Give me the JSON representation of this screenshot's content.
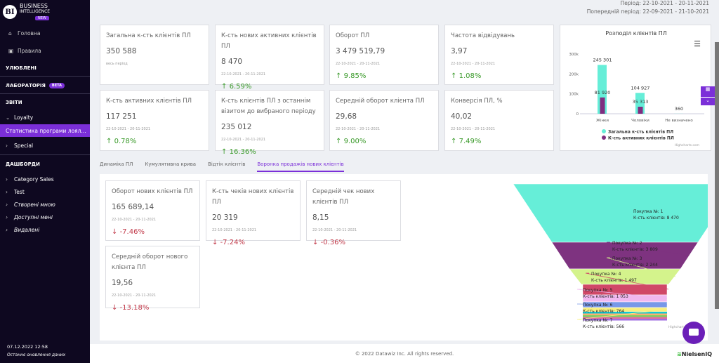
{
  "sidebar": {
    "logo": {
      "line1": "BUSINESS",
      "line2": "INTELLIGENCE",
      "badge": "NEW"
    },
    "home": "Головна",
    "rules": "Правила",
    "favorites": "УЛЮБЛЕНІ",
    "lab": "ЛАБОРАТОРІЯ",
    "lab_badge": "BETA",
    "reports": "ЗВІТИ",
    "loyalty": "Loyalty",
    "selected": "Статистика програми лоял...",
    "special": "Special",
    "dashboards": "ДАШБОРДИ",
    "category_sales": "Category Sales",
    "test": "Test",
    "created": "Створені мною",
    "shared": "Доступні мені",
    "deleted": "Видалені",
    "update_time": "07.12.2022 12:58",
    "update_label": "Останнє оновлення даних"
  },
  "header": {
    "period": "Період: 22-10-2021 - 20-11-2021",
    "prev_period": "Попередній період: 22-09-2021 - 21-10-2021"
  },
  "kpis": [
    {
      "title": "Загальна к-сть клієнтів ПЛ",
      "value": "350 588",
      "date": "весь період",
      "change": "",
      "dir": "none"
    },
    {
      "title": "К-сть нових активних клієнтів ПЛ",
      "value": "8 470",
      "date": "22-10-2021 - 20-11-2021",
      "change": "6.59%",
      "dir": "up"
    },
    {
      "title": "Оборот ПЛ",
      "value": "3 479 519,79",
      "date": "22-10-2021 - 20-11-2021",
      "change": "9.85%",
      "dir": "up"
    },
    {
      "title": "Частота відвідувань",
      "value": "3,97",
      "date": "22-10-2021 - 20-11-2021",
      "change": "1.08%",
      "dir": "up"
    },
    {
      "title": "К-сть активних клієнтів ПЛ",
      "value": "117 251",
      "date": "22-10-2021 - 20-11-2021",
      "change": "0.78%",
      "dir": "up"
    },
    {
      "title": "К-сть клієнтів ПЛ з останнім візитом до вибраного періоду",
      "value": "235 012",
      "date": "22-10-2021 - 20-11-2021",
      "change": "16.36%",
      "dir": "up"
    },
    {
      "title": "Середній оборот клієнта ПЛ",
      "value": "29,68",
      "date": "22-10-2021 - 20-11-2021",
      "change": "9.00%",
      "dir": "up"
    },
    {
      "title": "Конверсія ПЛ, %",
      "value": "40,02",
      "date": "22-10-2021 - 20-11-2021",
      "change": "7.49%",
      "dir": "up"
    }
  ],
  "tabs": [
    "Динаміка ПЛ",
    "Кумулятивна крива",
    "Відтік клієнтів",
    "Воронка продажів нових клієнтів"
  ],
  "sub_kpis": [
    {
      "title": "Оборот нових клієнтів ПЛ",
      "value": "165 689,14",
      "date": "22-10-2021 - 20-11-2021",
      "change": "-7.46%"
    },
    {
      "title": "К-сть чеків нових клієнтів ПЛ",
      "value": "20 319",
      "date": "22-10-2021 - 20-11-2021",
      "change": "-7.24%"
    },
    {
      "title": "Середній чек нових клієнтів ПЛ",
      "value": "8,15",
      "date": "22-10-2021 - 20-11-2021",
      "change": "-0.36%"
    },
    {
      "title": "Середній оборот нового клієнта ПЛ",
      "value": "19,56",
      "date": "22-10-2021 - 20-11-2021",
      "change": "-13.18%"
    }
  ],
  "footer": {
    "copyright": "© 2022 Datawiz Inc. All rights reserved.",
    "brand": "NielsenIQ"
  },
  "chart_data": [
    {
      "type": "bar",
      "title": "Розподіл клієнтів ПЛ",
      "categories": [
        "Жінки",
        "Чоловіки",
        "Не визначено"
      ],
      "series": [
        {
          "name": "Загальна к-сть клієнтів ПЛ",
          "color": "#66eed8",
          "values": [
            245301,
            104927,
            360
          ],
          "labels": [
            "245 301",
            "104 927",
            "360"
          ]
        },
        {
          "name": "К-сть активних клієнтів ПЛ",
          "color": "#7e2f80",
          "values": [
            81920,
            35313,
            0
          ],
          "labels": [
            "81 920",
            "35 313",
            ""
          ]
        }
      ],
      "ylim": [
        0,
        300000
      ],
      "yticks": [
        "0",
        "100k",
        "200k",
        "300k"
      ],
      "credit": "Highcharts.com",
      "legend": "bottom"
    },
    {
      "type": "funnel",
      "title": "Воронка продажів нових клієнтів",
      "credit": "Highcharts",
      "stages": [
        {
          "name": "Покупка №: 1",
          "label": "К-сть клієнтів: 8 470",
          "value": 8470,
          "color": "#66eed8"
        },
        {
          "name": "Покупка №: 2",
          "label": "К-сть клієнтів: 3 809",
          "value": 3809,
          "color": "#7e3380"
        },
        {
          "name": "Покупка №: 3",
          "label": "К-сть клієнтів: 2 244",
          "value": 2244,
          "color": "#d4f38c"
        },
        {
          "name": "Покупка №: 4",
          "label": "К-сть клієнтів: 1 497",
          "value": 1497,
          "color": "#d04868"
        },
        {
          "name": "Покупка №: 5",
          "label": "К-сть клієнтів: 1 053",
          "value": 1053,
          "color": "#f0b8f0"
        },
        {
          "name": "Покупка №: 6",
          "label": "К-сть клієнтів: 764",
          "value": 764,
          "color": "#7898e8"
        },
        {
          "name": "Покупка №: 7",
          "label": "К-сть клієнтів: 566",
          "value": 566,
          "color": "#f8f080"
        }
      ]
    }
  ]
}
